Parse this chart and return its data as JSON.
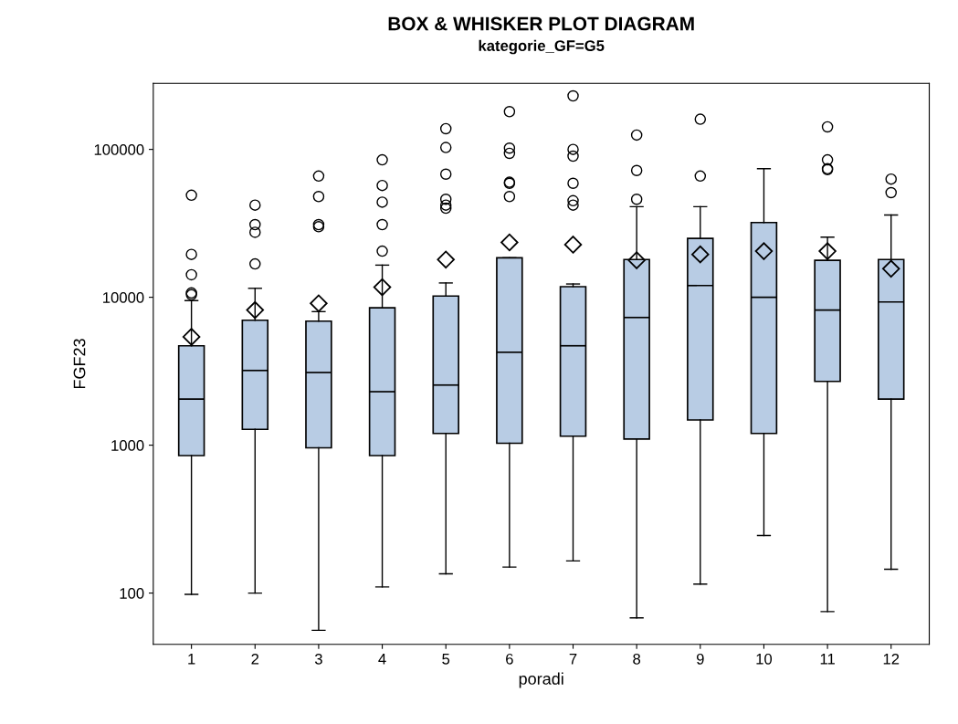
{
  "chart_data": {
    "type": "box",
    "title": "BOX & WHISKER PLOT DIAGRAM",
    "subtitle": "kategorie_GF=G5",
    "xlabel": "poradi",
    "ylabel": "FGF23",
    "categories": [
      "1",
      "2",
      "3",
      "4",
      "5",
      "6",
      "7",
      "8",
      "9",
      "10",
      "11",
      "12"
    ],
    "color": "#b8cce4",
    "log": true,
    "ylim": [
      45,
      280000
    ],
    "yticks": [
      100,
      1000,
      10000,
      100000
    ],
    "grid": false,
    "boxes": [
      {
        "low": 98,
        "q1": 850,
        "median": 2050,
        "q3": 4700,
        "high": 9500,
        "mean": 5400,
        "outliers": [
          49000,
          19500,
          14200,
          10700,
          10400
        ]
      },
      {
        "low": 100,
        "q1": 1280,
        "median": 3200,
        "q3": 7000,
        "high": 11500,
        "mean": 8200,
        "outliers": [
          42000,
          31000,
          27500,
          16800
        ]
      },
      {
        "low": 56,
        "q1": 960,
        "median": 3100,
        "q3": 6900,
        "high": 8000,
        "mean": 9100,
        "outliers": [
          66000,
          48000,
          31000,
          30000
        ]
      },
      {
        "low": 110,
        "q1": 850,
        "median": 2300,
        "q3": 8500,
        "high": 16500,
        "mean": 11700,
        "outliers": [
          85000,
          57000,
          44000,
          31000,
          20500
        ]
      },
      {
        "low": 135,
        "q1": 1200,
        "median": 2550,
        "q3": 10200,
        "high": 12500,
        "mean": 18000,
        "outliers": [
          138000,
          103000,
          68000,
          46000,
          42000,
          40000
        ]
      },
      {
        "low": 150,
        "q1": 1030,
        "median": 4250,
        "q3": 18500,
        "high": 18500,
        "mean": 23500,
        "outliers": [
          180000,
          102000,
          94000,
          60000,
          59000,
          48000
        ]
      },
      {
        "low": 165,
        "q1": 1150,
        "median": 4700,
        "q3": 11800,
        "high": 12300,
        "mean": 22700,
        "outliers": [
          230000,
          100000,
          90000,
          59000,
          45000,
          42000
        ]
      },
      {
        "low": 68,
        "q1": 1100,
        "median": 7300,
        "q3": 18000,
        "high": 41000,
        "mean": 17800,
        "outliers": [
          125000,
          72000,
          46000
        ]
      },
      {
        "low": 115,
        "q1": 1480,
        "median": 12000,
        "q3": 25000,
        "high": 41000,
        "mean": 19500,
        "outliers": [
          160000,
          66000
        ]
      },
      {
        "low": 245,
        "q1": 1200,
        "median": 10000,
        "q3": 32000,
        "high": 74000,
        "mean": 20500
      },
      {
        "low": 75,
        "q1": 2700,
        "median": 8200,
        "q3": 17800,
        "high": 25500,
        "mean": 20500,
        "outliers": [
          142000,
          85000,
          74000,
          73000
        ]
      },
      {
        "low": 145,
        "q1": 2050,
        "median": 9300,
        "q3": 18000,
        "high": 36000,
        "mean": 15600,
        "outliers": [
          63000,
          51000
        ]
      }
    ]
  }
}
